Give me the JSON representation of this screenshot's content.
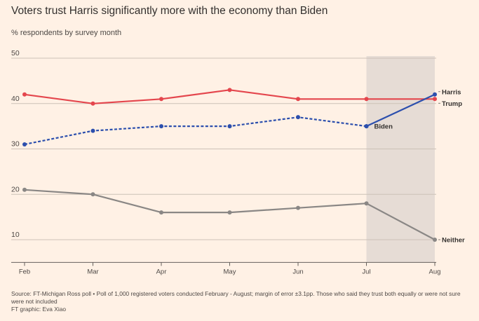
{
  "header": {
    "title": "Voters trust Harris significantly more with the economy than Biden",
    "subtitle": "% respondents by survey month"
  },
  "footer": {
    "source": "Source: FT-Michigan Ross poll • Poll of 1,000 registered voters conducted February - August; margin of error ±3.1pp. Those who said they trust both equally or were not sure were not included",
    "credit": "FT graphic: Eva Xiao"
  },
  "chart_data": {
    "type": "line",
    "title": "Voters trust Harris significantly more with the economy than Biden",
    "subtitle": "% respondents by survey month",
    "categories": [
      "Feb",
      "Mar",
      "Apr",
      "May",
      "Jun",
      "Jul",
      "Aug"
    ],
    "ylim": [
      5,
      50
    ],
    "yticks": [
      10,
      20,
      30,
      40,
      50
    ],
    "grid": true,
    "highlight_range": [
      "Jul",
      "Aug"
    ],
    "series": [
      {
        "name": "Trump",
        "color": "#e4464d",
        "dashed": false,
        "values": [
          42,
          40,
          41,
          43,
          41,
          41,
          41
        ]
      },
      {
        "name": "Biden",
        "color": "#2c4fad",
        "dashed": true,
        "values": [
          31,
          34,
          35,
          35,
          37,
          35,
          null
        ]
      },
      {
        "name": "Harris",
        "color": "#2c4fad",
        "dashed": false,
        "values": [
          null,
          null,
          null,
          null,
          null,
          35,
          42
        ]
      },
      {
        "name": "Neither",
        "color": "#8a8785",
        "dashed": false,
        "values": [
          21,
          20,
          16,
          16,
          17,
          18,
          10
        ]
      }
    ]
  }
}
